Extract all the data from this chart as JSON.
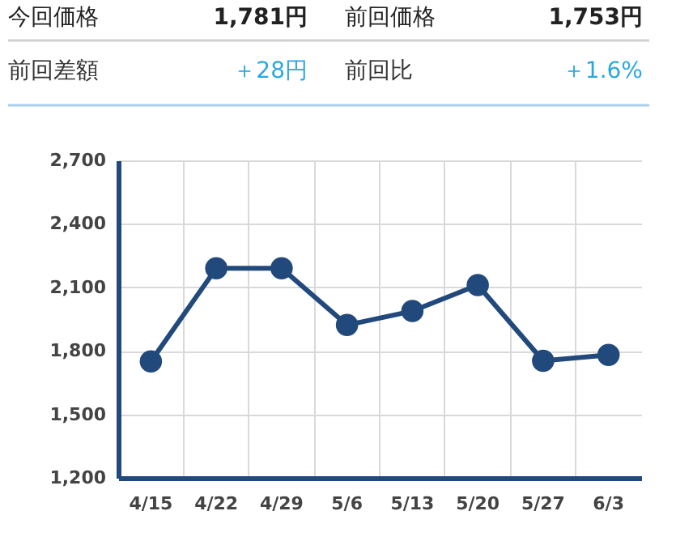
{
  "chart_data": {
    "type": "line",
    "categories": [
      "4/15",
      "4/22",
      "4/29",
      "5/6",
      "5/13",
      "5/20",
      "5/27",
      "6/3"
    ],
    "series": [
      {
        "color": "#22497c",
        "values": [
          1750,
          2190,
          2190,
          1922,
          1988,
          2111,
          1753,
          1781
        ]
      }
    ],
    "ylim": [
      1200,
      2700
    ],
    "yticks": [
      {
        "value": 1200,
        "label": "1,200"
      },
      {
        "value": 1500,
        "label": "1,500"
      },
      {
        "value": 1800,
        "label": "1,800"
      },
      {
        "value": 2100,
        "label": "2,100"
      },
      {
        "value": 2400,
        "label": "2,400"
      },
      {
        "value": 2700,
        "label": "2,700"
      }
    ],
    "grid": true,
    "marker": "circle",
    "line_style": "solid",
    "annotations": [
      "今回価格",
      "1,781円",
      "前回価格",
      "1,753円",
      "前回差額",
      "＋28円",
      "前回比",
      "＋1.6%"
    ]
  }
}
